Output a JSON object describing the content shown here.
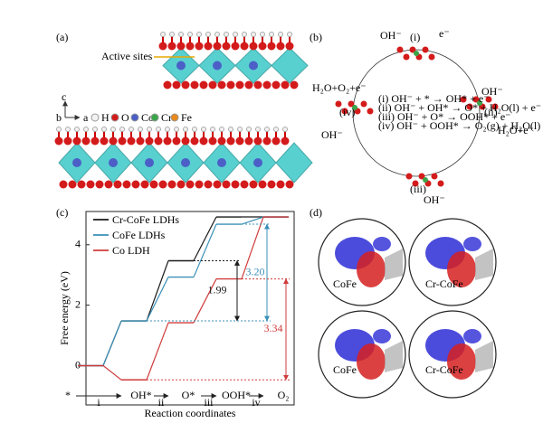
{
  "panel_a": {
    "label": "(a)",
    "annotation": "Active sites",
    "axes": [
      "c",
      "b",
      "a"
    ],
    "legend": [
      "H",
      "O",
      "Co",
      "Cr",
      "Fe"
    ]
  },
  "panel_b": {
    "label": "(b)",
    "reactions": [
      "(i) OH⁻ + * → OH* + e⁻",
      "(ii) OH⁻ + OH* → O* + H₂O(l) + e⁻",
      "(iii) OH⁻ + O* → OOH* + e⁻",
      "(iv) OH⁻ + OOH* → O₂(g) + H₂O(l) + e⁻"
    ],
    "steps": [
      "(i)",
      "(ii)",
      "(iii)",
      "(iv)"
    ],
    "side_labels": [
      "OH⁻",
      "e⁻",
      "OH⁻",
      "H₂O+e⁻",
      "OH⁻",
      "H₂O+O₂+e⁻",
      "OH⁻"
    ]
  },
  "panel_c": {
    "label": "(c)"
  },
  "panel_d": {
    "label": "(d)",
    "labels": [
      "CoFe",
      "Cr-CoFe",
      "CoFe",
      "Cr-CoFe"
    ]
  },
  "chart_data": {
    "type": "step",
    "categories": [
      "*",
      "OH*",
      "O*",
      "OOH*",
      "O₂"
    ],
    "step_labels": [
      "i",
      "ii",
      "iii",
      "iv"
    ],
    "series": [
      {
        "name": "Cr-CoFe LDHs",
        "color": "#1a1a1a",
        "values": [
          0,
          1.48,
          3.47,
          4.92,
          4.92
        ]
      },
      {
        "name": "CoFe LDHs",
        "color": "#3a8fb7",
        "values": [
          0,
          1.48,
          2.93,
          4.68,
          4.92
        ]
      },
      {
        "name": "Co LDH",
        "color": "#d03b3b",
        "values": [
          0,
          -0.47,
          1.42,
          2.87,
          4.92
        ]
      }
    ],
    "annotations": [
      {
        "text": "1.99",
        "color": "#1a1a1a"
      },
      {
        "text": "3.20",
        "color": "#3a8fb7"
      },
      {
        "text": "3.34",
        "color": "#d03b3b"
      }
    ],
    "ylabel": "Free energy (eV)",
    "xlabel": "Reaction coordinates",
    "ylim": [
      -1.3,
      5.1
    ],
    "yticks": [
      0,
      2,
      4
    ]
  }
}
